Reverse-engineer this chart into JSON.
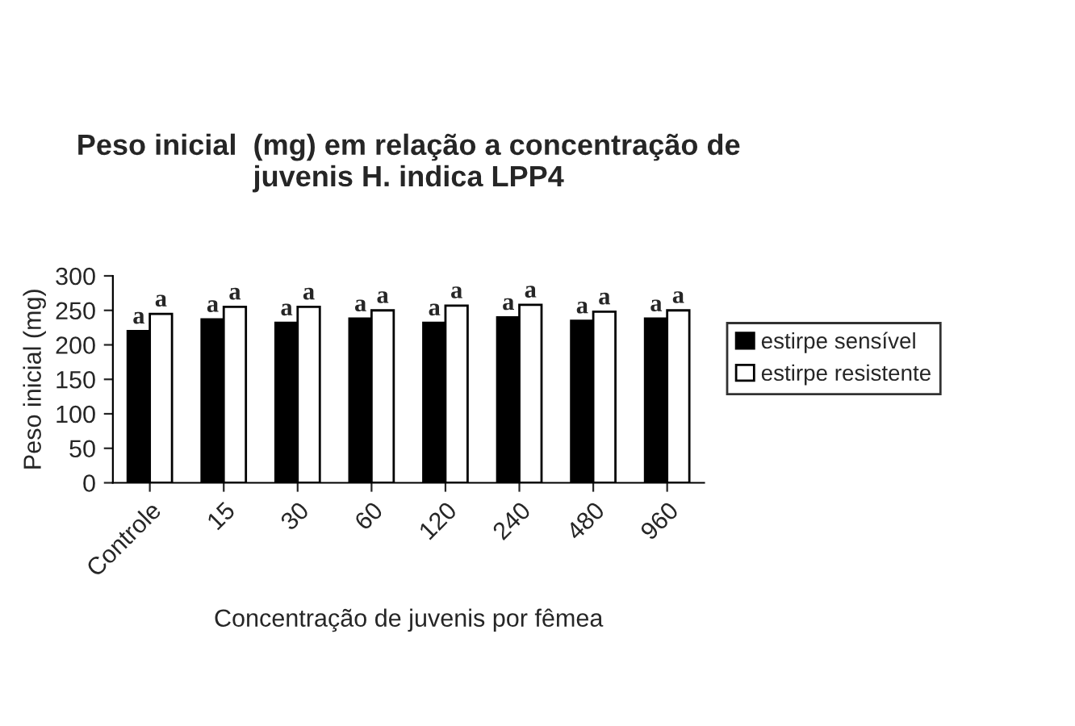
{
  "chart_data": {
    "type": "bar",
    "title": "Peso inicial  (mg) em relação a concentração de\njuvenis H. indica LPP4",
    "xlabel": "Concentração de juvenis por fêmea",
    "ylabel": "Peso inicial (mg)",
    "categories": [
      "Controle",
      "15",
      "30",
      "60",
      "120",
      "240",
      "480",
      "960"
    ],
    "series": [
      {
        "name": "estirpe sensível",
        "color": "#000000",
        "values": [
          220,
          237,
          232,
          238,
          232,
          240,
          235,
          238
        ],
        "value_labels": [
          "a",
          "a",
          "a",
          "a",
          "a",
          "a",
          "a",
          "a"
        ]
      },
      {
        "name": "estirpe resistente",
        "color": "#ffffff",
        "values": [
          245,
          255,
          255,
          250,
          257,
          258,
          248,
          250
        ],
        "value_labels": [
          "a",
          "a",
          "a",
          "a",
          "a",
          "a",
          "a",
          "a"
        ]
      }
    ],
    "ylim": [
      0,
      300
    ],
    "yticks": [
      0,
      50,
      100,
      150,
      200,
      250,
      300
    ],
    "grid": false,
    "legend": "right"
  }
}
